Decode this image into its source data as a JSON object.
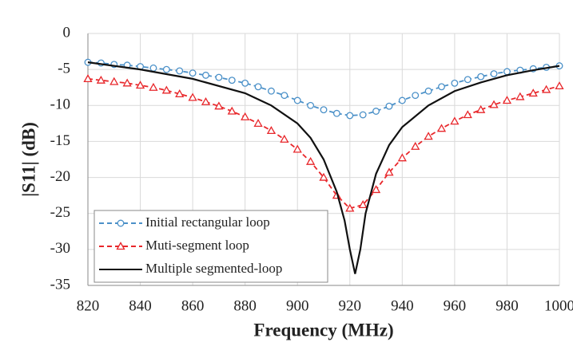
{
  "chart_data": {
    "type": "line",
    "x_label": "Frequency (MHz)",
    "y_label": "|S11| (dB)",
    "xlim": [
      820,
      1000
    ],
    "xticks": [
      820,
      840,
      860,
      880,
      900,
      920,
      940,
      960,
      980,
      1000
    ],
    "ylim": [
      -35,
      0
    ],
    "yticks": [
      -35,
      -30,
      -25,
      -20,
      -15,
      -10,
      -5,
      0
    ],
    "grid": true,
    "legend": "lower left",
    "series": [
      {
        "name": "Initial rectangular loop",
        "color": "#4a90c8",
        "marker": "circle",
        "line_style": "dashed",
        "x": [
          820,
          825,
          830,
          835,
          840,
          845,
          850,
          855,
          860,
          865,
          870,
          875,
          880,
          885,
          890,
          895,
          900,
          905,
          910,
          915,
          920,
          925,
          930,
          935,
          940,
          945,
          950,
          955,
          960,
          965,
          970,
          975,
          980,
          985,
          990,
          995,
          1000
        ],
        "values": [
          -4,
          -4.1,
          -4.3,
          -4.4,
          -4.6,
          -4.8,
          -5,
          -5.2,
          -5.5,
          -5.8,
          -6.1,
          -6.5,
          -6.9,
          -7.4,
          -8,
          -8.6,
          -9.3,
          -10,
          -10.6,
          -11.1,
          -11.4,
          -11.3,
          -10.8,
          -10.1,
          -9.3,
          -8.6,
          -8,
          -7.4,
          -6.9,
          -6.4,
          -6,
          -5.6,
          -5.3,
          -5.1,
          -4.9,
          -4.7,
          -4.5
        ]
      },
      {
        "name": "Muti-segment loop",
        "color": "#e8262a",
        "marker": "triangle",
        "line_style": "dashed",
        "x": [
          820,
          825,
          830,
          835,
          840,
          845,
          850,
          855,
          860,
          865,
          870,
          875,
          880,
          885,
          890,
          895,
          900,
          905,
          910,
          915,
          920,
          925,
          930,
          935,
          940,
          945,
          950,
          955,
          960,
          965,
          970,
          975,
          980,
          985,
          990,
          995,
          1000
        ],
        "values": [
          -6.3,
          -6.5,
          -6.7,
          -6.9,
          -7.2,
          -7.5,
          -7.9,
          -8.4,
          -8.9,
          -9.5,
          -10.1,
          -10.8,
          -11.6,
          -12.5,
          -13.5,
          -14.7,
          -16.1,
          -17.8,
          -20,
          -22.5,
          -24.3,
          -23.8,
          -21.7,
          -19.3,
          -17.3,
          -15.7,
          -14.3,
          -13.2,
          -12.2,
          -11.3,
          -10.6,
          -9.9,
          -9.3,
          -8.8,
          -8.3,
          -7.8,
          -7.3
        ]
      },
      {
        "name": "Multiple segmented-loop",
        "color": "#111111",
        "marker": "none",
        "line_style": "solid",
        "x": [
          820,
          840,
          860,
          880,
          890,
          900,
          905,
          910,
          915,
          918,
          920,
          922,
          924,
          926,
          930,
          935,
          940,
          950,
          960,
          970,
          980,
          990,
          1000
        ],
        "values": [
          -4,
          -5,
          -6.3,
          -8.3,
          -10,
          -12.5,
          -14.5,
          -17.5,
          -22,
          -26,
          -30,
          -33.4,
          -30,
          -25,
          -19.5,
          -15.5,
          -13,
          -10,
          -8,
          -6.8,
          -5.8,
          -5.1,
          -4.5
        ]
      }
    ]
  }
}
